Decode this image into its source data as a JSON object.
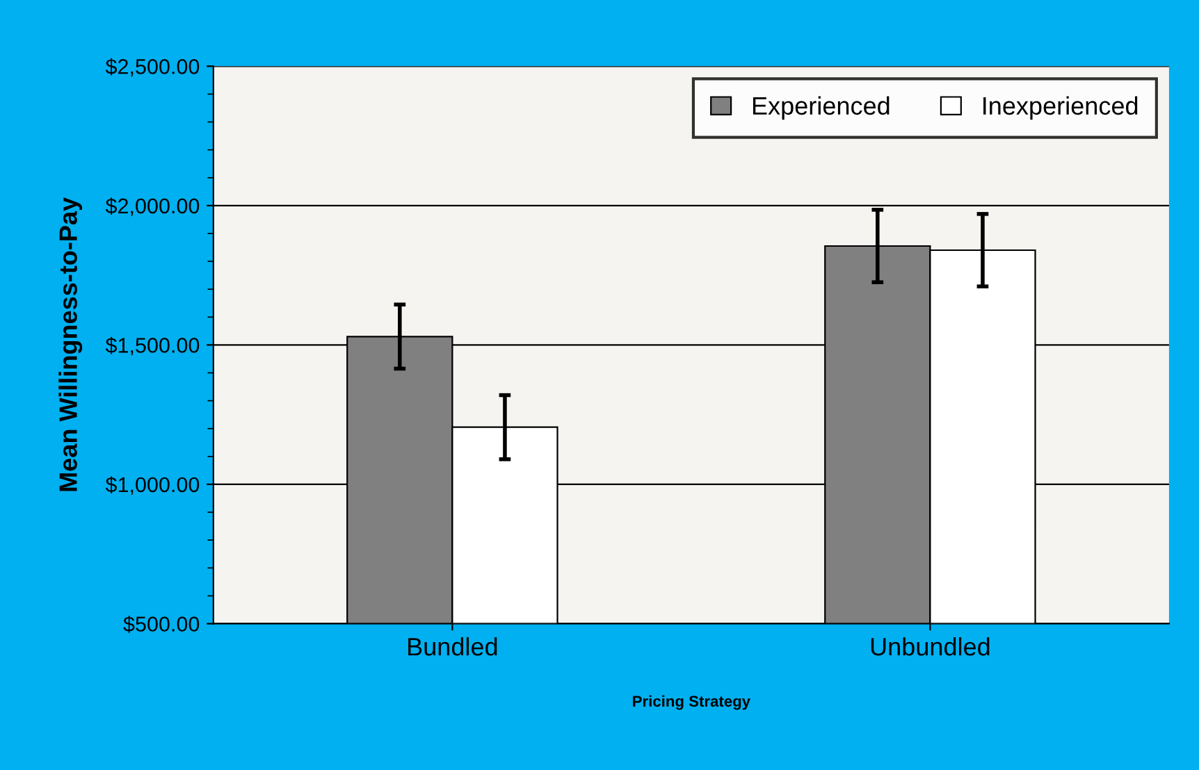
{
  "chart_data": {
    "type": "bar",
    "xlabel": "Pricing Strategy",
    "ylabel": "Mean Willingness-to-Pay",
    "categories": [
      "Bundled",
      "Unbundled"
    ],
    "series": [
      {
        "name": "Experienced",
        "color": "#808080",
        "values": [
          1530,
          1855
        ],
        "errors": [
          115,
          130
        ]
      },
      {
        "name": "Inexperienced",
        "color": "#ffffff",
        "values": [
          1205,
          1840
        ],
        "errors": [
          115,
          130
        ]
      }
    ],
    "ylim": [
      500,
      2500
    ],
    "yticks": [
      {
        "value": 500,
        "label": "$500.00"
      },
      {
        "value": 1000,
        "label": "$1,000.00"
      },
      {
        "value": 1500,
        "label": "$1,500.00"
      },
      {
        "value": 2000,
        "label": "$2,000.00"
      },
      {
        "value": 2500,
        "label": "$2,500.00"
      }
    ],
    "grid": "y",
    "legend": "top right"
  }
}
